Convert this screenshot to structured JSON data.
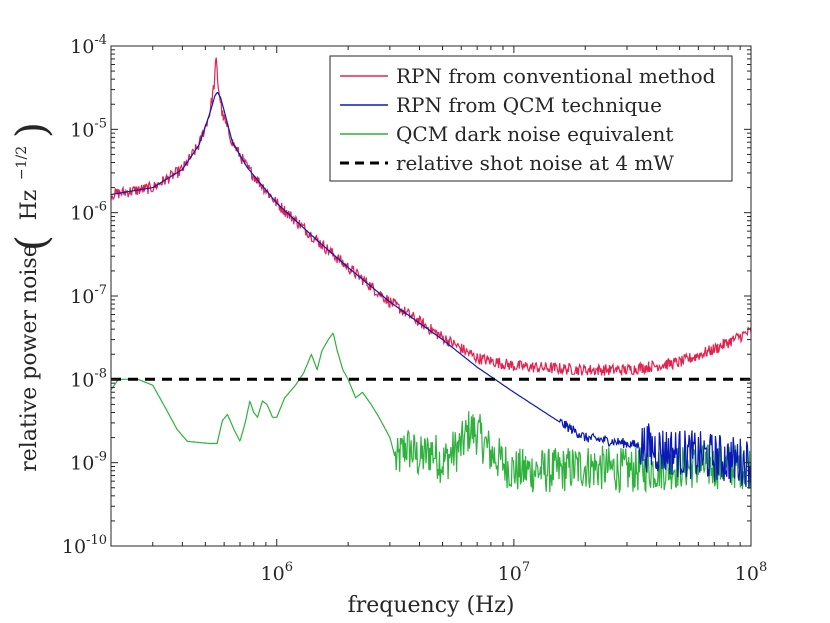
{
  "chart_data": {
    "type": "line",
    "xscale": "log",
    "yscale": "log",
    "xlabel": "frequency (Hz)",
    "ylabel": "relative power noise",
    "ylabel_unit": "Hz",
    "ylabel_unit_exp": "−1/2",
    "xlim": [
      200000,
      100000000
    ],
    "ylim": [
      1e-10,
      0.0001
    ],
    "x_ticks": [
      {
        "value": 1000000,
        "base": "10",
        "exp": "6"
      },
      {
        "value": 10000000,
        "base": "10",
        "exp": "7"
      },
      {
        "value": 100000000,
        "base": "10",
        "exp": "8"
      }
    ],
    "y_ticks": [
      {
        "value": 1e-10,
        "base": "10",
        "exp": "-10"
      },
      {
        "value": 1e-09,
        "base": "10",
        "exp": "-9"
      },
      {
        "value": 1e-08,
        "base": "10",
        "exp": "-8"
      },
      {
        "value": 1e-07,
        "base": "10",
        "exp": "-7"
      },
      {
        "value": 1e-06,
        "base": "10",
        "exp": "-6"
      },
      {
        "value": 1e-05,
        "base": "10",
        "exp": "-5"
      },
      {
        "value": 0.0001,
        "base": "10",
        "exp": "-4"
      }
    ],
    "legend_position": "top-right",
    "series": [
      {
        "name": "RPN from conventional method",
        "color": "#e3234f",
        "style": "solid",
        "noise": 0.07,
        "points": [
          [
            200000,
            1.65e-06
          ],
          [
            300000,
            2e-06
          ],
          [
            400000,
            3.3e-06
          ],
          [
            470000,
            6.5e-06
          ],
          [
            520000,
            1.5e-05
          ],
          [
            545000,
            3.5e-05
          ],
          [
            555000,
            7e-05
          ],
          [
            565000,
            3.5e-05
          ],
          [
            590000,
            1.5e-05
          ],
          [
            650000,
            7e-06
          ],
          [
            750000,
            3.5e-06
          ],
          [
            1000000,
            1.3e-06
          ],
          [
            1500000,
            4.5e-07
          ],
          [
            2000000,
            2.2e-07
          ],
          [
            3000000,
            8.5e-08
          ],
          [
            5000000,
            3.2e-08
          ],
          [
            7000000,
            1.8e-08
          ],
          [
            10000000,
            1.45e-08
          ],
          [
            15000000,
            1.35e-08
          ],
          [
            20000000,
            1.3e-08
          ],
          [
            30000000,
            1.3e-08
          ],
          [
            50000000,
            1.6e-08
          ],
          [
            70000000,
            2.3e-08
          ],
          [
            100000000,
            3.8e-08
          ]
        ]
      },
      {
        "name": "RPN from QCM technique",
        "color": "#0a1ab4",
        "style": "solid",
        "noise": 0.0,
        "points": [
          [
            200000,
            1.65e-06
          ],
          [
            300000,
            2e-06
          ],
          [
            400000,
            3.3e-06
          ],
          [
            470000,
            6.5e-06
          ],
          [
            520000,
            1.5e-05
          ],
          [
            548000,
            2.5e-05
          ],
          [
            562000,
            2.8e-05
          ],
          [
            580000,
            2.4e-05
          ],
          [
            610000,
            1.4e-05
          ],
          [
            650000,
            7e-06
          ],
          [
            750000,
            3.5e-06
          ],
          [
            1000000,
            1.3e-06
          ],
          [
            1500000,
            4.5e-07
          ],
          [
            2000000,
            2.2e-07
          ],
          [
            3000000,
            8.5e-08
          ],
          [
            5000000,
            3e-08
          ],
          [
            7000000,
            1.4e-08
          ],
          [
            10000000,
            7e-09
          ],
          [
            15000000,
            3.3e-09
          ],
          [
            20000000,
            2e-09
          ],
          [
            30000000,
            1.7e-09
          ],
          [
            50000000,
            1.3e-09
          ],
          [
            100000000,
            1e-09
          ]
        ]
      },
      {
        "name": "QCM dark noise equivalent",
        "color": "#2fb13d",
        "style": "solid",
        "noise": 0.0,
        "points": [
          [
            200000,
            7.5e-09
          ],
          [
            215000,
            1e-08
          ],
          [
            260000,
            1e-08
          ],
          [
            300000,
            8.5e-09
          ],
          [
            340000,
            4.5e-09
          ],
          [
            380000,
            2.5e-09
          ],
          [
            420000,
            1.8e-09
          ],
          [
            520000,
            1.7e-09
          ],
          [
            560000,
            1.7e-09
          ],
          [
            590000,
            3.2e-09
          ],
          [
            620000,
            3.8e-09
          ],
          [
            660000,
            2.5e-09
          ],
          [
            700000,
            1.8e-09
          ],
          [
            740000,
            3.2e-09
          ],
          [
            770000,
            5.5e-09
          ],
          [
            800000,
            4e-09
          ],
          [
            830000,
            3.5e-09
          ],
          [
            870000,
            5.5e-09
          ],
          [
            910000,
            5e-09
          ],
          [
            960000,
            3.5e-09
          ],
          [
            1000000,
            3.5e-09
          ],
          [
            1080000,
            6e-09
          ],
          [
            1200000,
            8.5e-09
          ],
          [
            1300000,
            1.2e-08
          ],
          [
            1400000,
            2e-08
          ],
          [
            1480000,
            1.3e-08
          ],
          [
            1550000,
            2.2e-08
          ],
          [
            1650000,
            3e-08
          ],
          [
            1730000,
            3.6e-08
          ],
          [
            1800000,
            2.2e-08
          ],
          [
            1900000,
            1.3e-08
          ],
          [
            2000000,
            1e-08
          ],
          [
            2150000,
            6e-09
          ],
          [
            2300000,
            7e-09
          ],
          [
            2500000,
            5e-09
          ],
          [
            2700000,
            3.5e-09
          ],
          [
            3000000,
            2e-09
          ],
          [
            3200000,
            1e-09
          ],
          [
            3500000,
            1.6e-09
          ],
          [
            4000000,
            1.1e-09
          ],
          [
            4500000,
            1.4e-09
          ],
          [
            5000000,
            1e-09
          ],
          [
            5500000,
            1.3e-09
          ],
          [
            6000000,
            1.6e-09
          ],
          [
            6500000,
            2.5e-09
          ],
          [
            7000000,
            2.3e-09
          ],
          [
            8000000,
            1.3e-09
          ],
          [
            10000000,
            8e-10
          ],
          [
            15000000,
            8e-10
          ],
          [
            20000000,
            9e-10
          ],
          [
            30000000,
            8e-10
          ],
          [
            50000000,
            9e-10
          ],
          [
            100000000,
            9e-10
          ]
        ]
      },
      {
        "name": "relative shot noise at 4 mW",
        "color": "#000000",
        "style": "dashed",
        "noise": 0.0,
        "points": [
          [
            200000,
            1e-08
          ],
          [
            100000000,
            1e-08
          ]
        ]
      }
    ]
  }
}
